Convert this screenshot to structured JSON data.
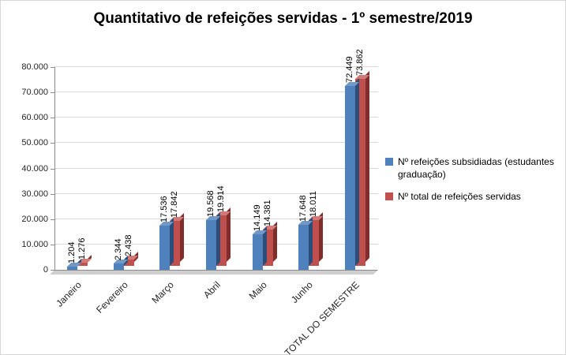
{
  "chart_data": {
    "type": "bar",
    "style": "3d-clustered-column",
    "title": "Quantitativo de refeições servidas - 1º semestre/2019",
    "categories": [
      "Janeiro",
      "Fevereiro",
      "Março",
      "Abril",
      "Maio",
      "Junho",
      "TOTAL DO SEMESTRE"
    ],
    "series": [
      {
        "name": "Nº refeições subsidiadas (estudantes graduação)",
        "color": "#4f81bd",
        "color_dark": "#2c4d78",
        "color_light": "#7298c7",
        "values": [
          1204,
          2344,
          17536,
          19568,
          14149,
          17648,
          72449
        ],
        "labels": [
          "1.204",
          "2.344",
          "17.536",
          "19.568",
          "14.149",
          "17.648",
          "72.449"
        ]
      },
      {
        "name": "Nº total  de refeições servidas",
        "color": "#c0504d",
        "color_dark": "#7f2e2c",
        "color_light": "#d27a77",
        "values": [
          1276,
          2438,
          17842,
          19914,
          14381,
          18011,
          73862
        ],
        "labels": [
          "1.276",
          "2.438",
          "17.842",
          "19.914",
          "14.381",
          "18.011",
          "73.862"
        ]
      }
    ],
    "y_axis": {
      "min": 0,
      "max": 80000,
      "step": 10000,
      "tick_labels": [
        "0",
        "10.000",
        "20.000",
        "30.000",
        "40.000",
        "50.000",
        "60.000",
        "70.000",
        "80.000"
      ]
    },
    "x_axis": {
      "label_rotation": -45
    },
    "data_label_rotation": -90,
    "legend_position": "right",
    "grid": true,
    "colors": {
      "background": "#ffffff",
      "gridline": "#d9d9d9",
      "axis": "#898989",
      "floor": "#cfcfcf",
      "text": "#262626"
    }
  }
}
